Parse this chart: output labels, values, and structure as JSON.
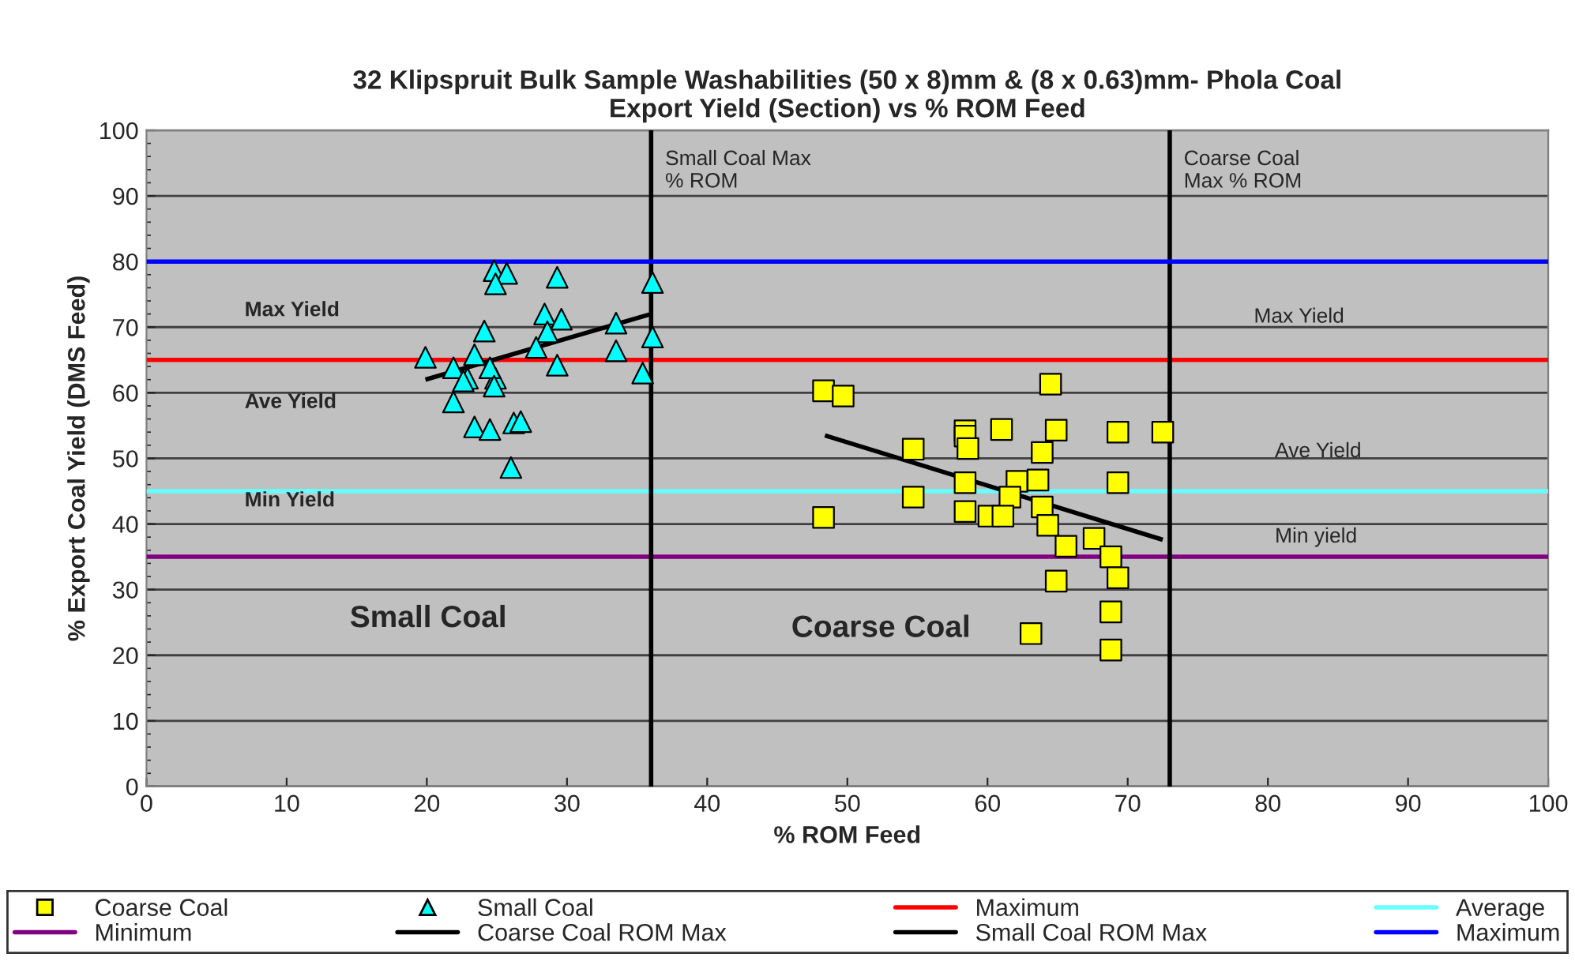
{
  "chart_data": {
    "type": "scatter",
    "title": "32 Klipspruit Bulk Sample Washabilities (50 x 8)mm & (8 x 0.63)mm- Phola Coal\nExport Yield (Section) vs % ROM Feed",
    "xlabel": "% ROM Feed",
    "ylabel": "% Export Coal Yield (DMS Feed)",
    "xlim": [
      0,
      100
    ],
    "ylim": [
      0,
      100
    ],
    "xticks": [
      0,
      10,
      20,
      30,
      40,
      50,
      60,
      70,
      80,
      90,
      100
    ],
    "yticks": [
      0,
      10,
      20,
      30,
      40,
      50,
      60,
      70,
      80,
      90,
      100
    ],
    "grid": "y",
    "legend": "bottom",
    "series": [
      {
        "name": "Coarse Coal",
        "marker": "square",
        "color": "#ffff00",
        "x": [
          48.3,
          49.7,
          54.7,
          54.7,
          48.3,
          58.4,
          58.4,
          58.6,
          61.0,
          64.5,
          64.9,
          69.3,
          72.5,
          63.9,
          58.4,
          62.1,
          63.6,
          61.6,
          58.4,
          60.1,
          61.1,
          63.9,
          64.3,
          65.6,
          67.6,
          68.8,
          69.3,
          64.9,
          68.8,
          63.1,
          68.8,
          69.3
        ],
        "values": [
          60.3,
          59.5,
          51.4,
          44.1,
          41.0,
          54.2,
          53.4,
          51.5,
          54.4,
          61.3,
          54.3,
          54.0,
          54.0,
          50.9,
          46.3,
          46.5,
          46.7,
          44.1,
          41.9,
          41.2,
          41.2,
          42.6,
          39.8,
          36.6,
          37.8,
          35.0,
          31.8,
          31.3,
          26.6,
          23.3,
          20.8,
          46.3
        ]
      },
      {
        "name": "Small Coal",
        "marker": "triangle",
        "color": "#00ffff",
        "x": [
          19.9,
          21.9,
          23.4,
          22.9,
          24.1,
          24.8,
          25.7,
          24.9,
          28.4,
          29.3,
          29.6,
          28.6,
          27.8,
          29.3,
          24.9,
          24.5,
          23.4,
          24.5,
          26.2,
          26.7,
          26.0,
          21.9,
          33.5,
          33.5,
          36.1,
          36.1,
          35.4,
          22.6,
          24.8
        ],
        "values": [
          65.4,
          63.8,
          65.8,
          62.2,
          69.4,
          78.6,
          78.2,
          76.6,
          72.0,
          77.6,
          71.2,
          69.3,
          66.9,
          64.2,
          62.2,
          63.8,
          54.8,
          54.4,
          55.4,
          55.6,
          48.6,
          58.6,
          70.6,
          66.4,
          76.8,
          68.5,
          63.0,
          61.8,
          61.0
        ]
      },
      {
        "name": "Maximum",
        "type": "line",
        "color": "#ff0000",
        "x": [
          0,
          100
        ],
        "values": [
          65,
          65
        ]
      },
      {
        "name": "Average",
        "type": "line",
        "color": "#66ffff",
        "x": [
          0,
          100
        ],
        "values": [
          45,
          45
        ]
      },
      {
        "name": "Minimum",
        "type": "line",
        "color": "#800080",
        "x": [
          0,
          100
        ],
        "values": [
          35,
          35
        ]
      },
      {
        "name": "Coarse Coal ROM Max",
        "type": "line",
        "color": "#000000",
        "x": [
          73,
          73
        ],
        "values": [
          0,
          100
        ]
      },
      {
        "name": "Small Coal ROM Max",
        "type": "line",
        "color": "#000000",
        "x": [
          36,
          36
        ],
        "values": [
          0,
          100
        ]
      },
      {
        "name": "Maximum",
        "type": "line",
        "color": "#0000ff",
        "x": [
          0,
          100
        ],
        "values": [
          80,
          80
        ]
      },
      {
        "type": "line",
        "color": "#000000",
        "x": [
          48.4,
          72.5
        ],
        "values": [
          53.5,
          37.6
        ]
      },
      {
        "type": "line",
        "color": "#000000",
        "x": [
          19.9,
          36.0
        ],
        "values": [
          62.0,
          72.0
        ]
      }
    ],
    "annotations": [
      "Small Coal Max\n% ROM",
      "Coarse Coal\nMax % ROM",
      "Max Yield",
      "Ave Yield",
      "Min Yield",
      "Max Yield",
      "Ave Yield",
      "Min yield",
      "Small Coal",
      "Coarse Coal"
    ]
  }
}
